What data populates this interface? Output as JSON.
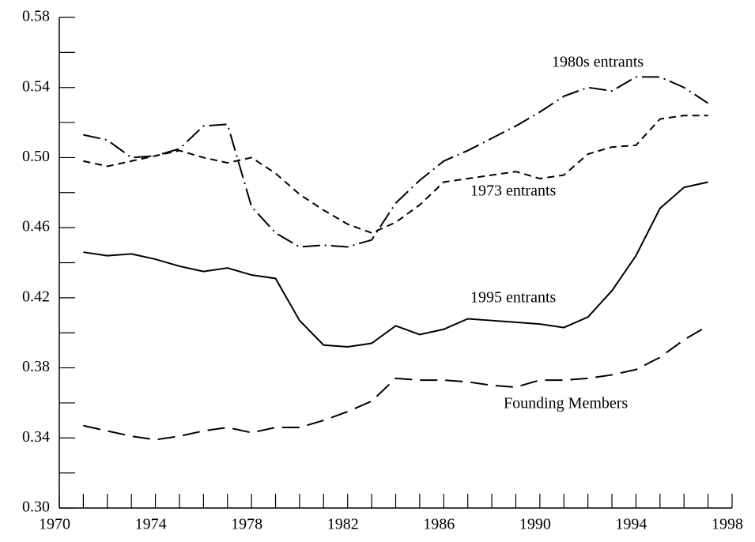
{
  "chart_data": {
    "type": "line",
    "x": [
      1971,
      1972,
      1973,
      1974,
      1975,
      1976,
      1977,
      1978,
      1979,
      1980,
      1981,
      1982,
      1983,
      1984,
      1985,
      1986,
      1987,
      1988,
      1989,
      1990,
      1991,
      1992,
      1993,
      1994,
      1995,
      1996,
      1997
    ],
    "series": [
      {
        "name": "1980s entrants",
        "color": "#000000",
        "dash": "dashdot",
        "values": [
          0.513,
          0.51,
          0.5,
          0.501,
          0.505,
          0.518,
          0.519,
          0.472,
          0.457,
          0.449,
          0.45,
          0.449,
          0.453,
          0.474,
          0.487,
          0.498,
          0.504,
          0.511,
          0.518,
          0.526,
          0.535,
          0.54,
          0.538,
          0.546,
          0.546,
          0.54,
          0.531
        ]
      },
      {
        "name": "1973 entrants",
        "color": "#000000",
        "dash": "short",
        "values": [
          0.498,
          0.495,
          0.498,
          0.501,
          0.504,
          0.5,
          0.497,
          0.5,
          0.491,
          0.479,
          0.47,
          0.462,
          0.457,
          0.463,
          0.473,
          0.486,
          0.488,
          0.49,
          0.492,
          0.488,
          0.49,
          0.502,
          0.506,
          0.507,
          0.522,
          0.524,
          0.524
        ]
      },
      {
        "name": "1995 entrants",
        "color": "#000000",
        "dash": "solid",
        "values": [
          0.446,
          0.444,
          0.445,
          0.442,
          0.438,
          0.435,
          0.437,
          0.433,
          0.431,
          0.407,
          0.393,
          0.392,
          0.394,
          0.404,
          0.399,
          0.402,
          0.408,
          0.407,
          0.406,
          0.405,
          0.403,
          0.409,
          0.424,
          0.444,
          0.471,
          0.483,
          0.486
        ]
      },
      {
        "name": "Founding Members",
        "color": "#000000",
        "dash": "long",
        "values": [
          0.347,
          0.344,
          0.341,
          0.339,
          0.341,
          0.344,
          0.346,
          0.343,
          0.346,
          0.346,
          0.35,
          0.355,
          0.361,
          0.374,
          0.373,
          0.373,
          0.372,
          0.37,
          0.369,
          0.373,
          0.373,
          0.374,
          0.376,
          0.379,
          0.386,
          0.396,
          0.404
        ]
      }
    ],
    "xlim": [
      1970,
      1998
    ],
    "xticks": [
      1970,
      1974,
      1978,
      1982,
      1986,
      1990,
      1994,
      1998
    ],
    "xminorticks": [
      1971,
      1972,
      1973,
      1975,
      1976,
      1977,
      1979,
      1980,
      1981,
      1983,
      1984,
      1985,
      1987,
      1988,
      1989,
      1991,
      1992,
      1993,
      1995,
      1996,
      1997
    ],
    "ylim": [
      0.3,
      0.58
    ],
    "yticks": [
      {
        "value": 0.3,
        "label": "0.30"
      },
      {
        "value": 0.34,
        "label": "0.34"
      },
      {
        "value": 0.38,
        "label": "0.38"
      },
      {
        "value": 0.42,
        "label": "0.42"
      },
      {
        "value": 0.46,
        "label": "0.46"
      },
      {
        "value": 0.5,
        "label": "0.50"
      },
      {
        "value": 0.54,
        "label": "0.54"
      },
      {
        "value": 0.58,
        "label": "0.58"
      }
    ],
    "yminorticks": [
      0.32,
      0.36,
      0.4,
      0.44,
      0.48,
      0.52,
      0.56
    ],
    "grid": false
  }
}
